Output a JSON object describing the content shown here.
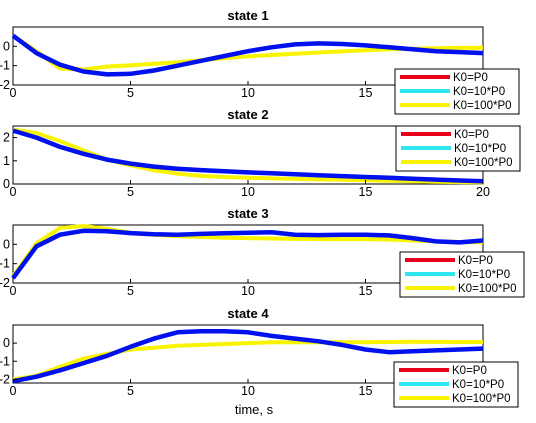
{
  "chart_data": {
    "type": "line",
    "xlabel": "time, s",
    "legend": [
      "K0=P0",
      "K0=10*P0",
      "K0=100*P0"
    ],
    "legend_placement": "right",
    "colors": {
      "K0=P0": "#e8001c",
      "K0=10*P0": "#2ee8f0",
      "K0=100*P0": "#f8f400",
      "thick": "#0010ef"
    },
    "x": [
      0,
      1,
      2,
      3,
      4,
      5,
      6,
      7,
      8,
      9,
      10,
      11,
      12,
      13,
      14,
      15,
      16,
      17,
      18,
      19,
      20
    ],
    "subplots": [
      {
        "title": "state 1",
        "xlim": [
          0,
          20
        ],
        "ylim": [
          -2,
          1
        ],
        "xticks": [
          "0",
          "5",
          "10",
          "15"
        ],
        "yticks": [
          "0",
          "-1",
          "-2"
        ],
        "ytick_values": [
          0,
          -1,
          -2
        ],
        "legend_placement": "lower-right",
        "series": [
          {
            "values": [
              0.55,
              -0.35,
              -0.95,
              -1.3,
              -1.45,
              -1.42,
              -1.25,
              -1.0,
              -0.75,
              -0.5,
              -0.25,
              -0.05,
              0.1,
              0.15,
              0.12,
              0.05,
              -0.05,
              -0.15,
              -0.25,
              -0.3,
              -0.35
            ]
          },
          {
            "values": [
              0.55,
              -0.35,
              -1.0,
              -1.28,
              -1.42,
              -1.4,
              -1.22,
              -0.98,
              -0.72,
              -0.48,
              -0.22,
              -0.02,
              0.12,
              0.16,
              0.12,
              0.04,
              -0.06,
              -0.16,
              -0.26,
              -0.31,
              -0.36
            ]
          },
          {
            "values": [
              0.55,
              -0.25,
              -1.15,
              -1.2,
              -1.05,
              -0.98,
              -0.9,
              -0.82,
              -0.72,
              -0.62,
              -0.52,
              -0.45,
              -0.38,
              -0.32,
              -0.26,
              -0.2,
              -0.16,
              -0.12,
              -0.1,
              -0.08,
              -0.07
            ]
          }
        ]
      },
      {
        "title": "state 2",
        "xlim": [
          0,
          20
        ],
        "ylim": [
          0,
          2.5
        ],
        "xticks": [
          "0",
          "5",
          "10",
          "15",
          "20"
        ],
        "yticks": [
          "2",
          "1",
          "0"
        ],
        "ytick_values": [
          2,
          1,
          0
        ],
        "legend_placement": "top-right",
        "series": [
          {
            "values": [
              2.3,
              2.0,
              1.6,
              1.3,
              1.05,
              0.88,
              0.75,
              0.66,
              0.6,
              0.55,
              0.5,
              0.46,
              0.42,
              0.38,
              0.34,
              0.3,
              0.27,
              0.23,
              0.19,
              0.15,
              0.12
            ]
          },
          {
            "values": [
              2.3,
              2.02,
              1.62,
              1.32,
              1.06,
              0.89,
              0.76,
              0.67,
              0.61,
              0.56,
              0.51,
              0.47,
              0.43,
              0.39,
              0.35,
              0.31,
              0.28,
              0.24,
              0.2,
              0.16,
              0.12
            ]
          },
          {
            "values": [
              2.35,
              2.2,
              1.85,
              1.45,
              1.05,
              0.8,
              0.6,
              0.45,
              0.35,
              0.3,
              0.27,
              0.24,
              0.22,
              0.2,
              0.18,
              0.16,
              0.14,
              0.12,
              0.1,
              0.08,
              0.07
            ]
          }
        ]
      },
      {
        "title": "state 3",
        "xlim": [
          0,
          20
        ],
        "ylim": [
          -2,
          1
        ],
        "xticks": [
          "0",
          "5",
          "10",
          "15"
        ],
        "yticks": [
          "0",
          "-1",
          "-2"
        ],
        "ytick_values": [
          0,
          -1,
          -2
        ],
        "legend_placement": "lower-right",
        "series": [
          {
            "values": [
              -1.75,
              -0.1,
              0.5,
              0.7,
              0.68,
              0.58,
              0.52,
              0.5,
              0.54,
              0.57,
              0.6,
              0.62,
              0.5,
              0.48,
              0.5,
              0.5,
              0.46,
              0.32,
              0.15,
              0.1,
              0.2
            ]
          },
          {
            "values": [
              -1.72,
              -0.05,
              0.55,
              0.72,
              0.7,
              0.6,
              0.53,
              0.51,
              0.55,
              0.58,
              0.6,
              0.61,
              0.5,
              0.48,
              0.5,
              0.5,
              0.46,
              0.32,
              0.16,
              0.1,
              0.2
            ]
          },
          {
            "values": [
              -1.65,
              0.05,
              0.85,
              0.95,
              0.8,
              0.6,
              0.5,
              0.42,
              0.38,
              0.34,
              0.32,
              0.3,
              0.28,
              0.27,
              0.27,
              0.27,
              0.25,
              0.2,
              0.15,
              0.12,
              0.1
            ]
          }
        ]
      },
      {
        "title": "state 4",
        "xlim": [
          0,
          20
        ],
        "ylim": [
          -2.2,
          1
        ],
        "xticks": [
          "0",
          "5",
          "10",
          "15"
        ],
        "yticks": [
          "0",
          "-1",
          "-2"
        ],
        "ytick_values": [
          0,
          -1,
          -2
        ],
        "legend_placement": "lower-right",
        "series": [
          {
            "values": [
              -2.1,
              -1.85,
              -1.5,
              -1.1,
              -0.7,
              -0.2,
              0.25,
              0.6,
              0.65,
              0.66,
              0.6,
              0.4,
              0.25,
              0.1,
              -0.1,
              -0.35,
              -0.5,
              -0.45,
              -0.4,
              -0.35,
              -0.3
            ]
          },
          {
            "values": [
              -2.1,
              -1.83,
              -1.48,
              -1.08,
              -0.68,
              -0.18,
              0.26,
              0.6,
              0.65,
              0.66,
              0.6,
              0.4,
              0.25,
              0.1,
              -0.1,
              -0.34,
              -0.5,
              -0.45,
              -0.4,
              -0.35,
              -0.3
            ]
          },
          {
            "values": [
              -2.0,
              -1.8,
              -1.3,
              -0.85,
              -0.6,
              -0.35,
              -0.25,
              -0.15,
              -0.1,
              -0.05,
              0.0,
              0.05,
              0.05,
              0.05,
              0.05,
              0.05,
              0.06,
              0.08,
              0.07,
              0.06,
              0.06
            ]
          }
        ]
      }
    ]
  }
}
